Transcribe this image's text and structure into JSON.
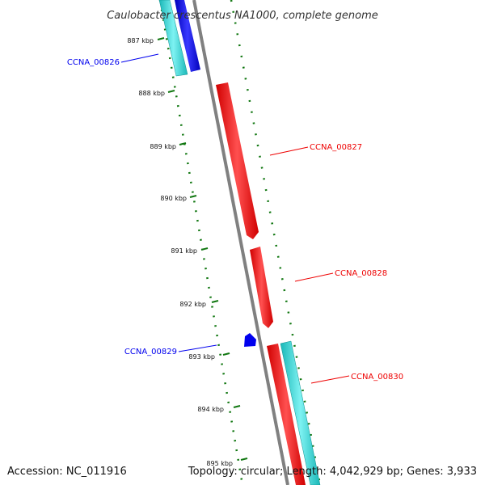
{
  "title": "Caulobacter crescentus NA1000, complete genome",
  "footer": {
    "accession": "Accession: NC_011916",
    "summary": "Topology: circular; Length: 4,042,929 bp; Genes: 3,933"
  },
  "ticks": [
    "887 kbp",
    "888 kbp",
    "889 kbp",
    "890 kbp",
    "891 kbp",
    "892 kbp",
    "893 kbp",
    "894 kbp",
    "895 kbp"
  ],
  "genes": [
    {
      "label": "CCNA_00826",
      "strand": "minus",
      "color": "#0000ee"
    },
    {
      "label": "CCNA_00827",
      "strand": "plus",
      "color": "#ee0000"
    },
    {
      "label": "CCNA_00828",
      "strand": "plus",
      "color": "#ee0000"
    },
    {
      "label": "CCNA_00829",
      "strand": "minus",
      "color": "#0000ee"
    },
    {
      "label": "CCNA_00830",
      "strand": "plus",
      "color": "#ee0000"
    }
  ],
  "colors": {
    "backbone": "#808080",
    "plus_strand": "#ee0000",
    "minus_strand": "#0000ee",
    "cds_track": "#22cccc",
    "gc_track": "#117711"
  }
}
